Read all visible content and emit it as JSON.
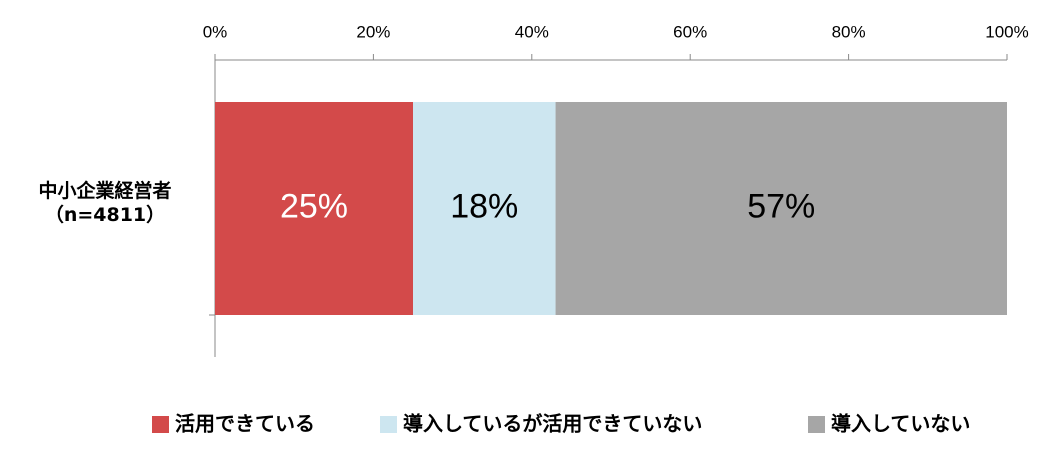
{
  "chart_data": {
    "type": "stacked_barh",
    "categories": [
      "中小企業経営者\n（n=4811）"
    ],
    "series": [
      {
        "name": "活用できている",
        "color": "#d34a4a",
        "label_color": "#ffffff",
        "values": [
          25
        ],
        "value_labels": [
          "25%"
        ]
      },
      {
        "name": "導入しているが活用できていない",
        "color": "#cde6f0",
        "label_color": "#000000",
        "values": [
          18
        ],
        "value_labels": [
          "18%"
        ]
      },
      {
        "name": "導入していない",
        "color": "#a6a6a6",
        "label_color": "#000000",
        "values": [
          57
        ],
        "value_labels": [
          "57%"
        ]
      }
    ],
    "xlim": [
      0,
      100
    ],
    "xticks": [
      {
        "value": 0,
        "label": "0%"
      },
      {
        "value": 20,
        "label": "20%"
      },
      {
        "value": 40,
        "label": "40%"
      },
      {
        "value": 60,
        "label": "60%"
      },
      {
        "value": 80,
        "label": "80%"
      },
      {
        "value": 100,
        "label": "100%"
      }
    ],
    "legend": "bottom"
  }
}
